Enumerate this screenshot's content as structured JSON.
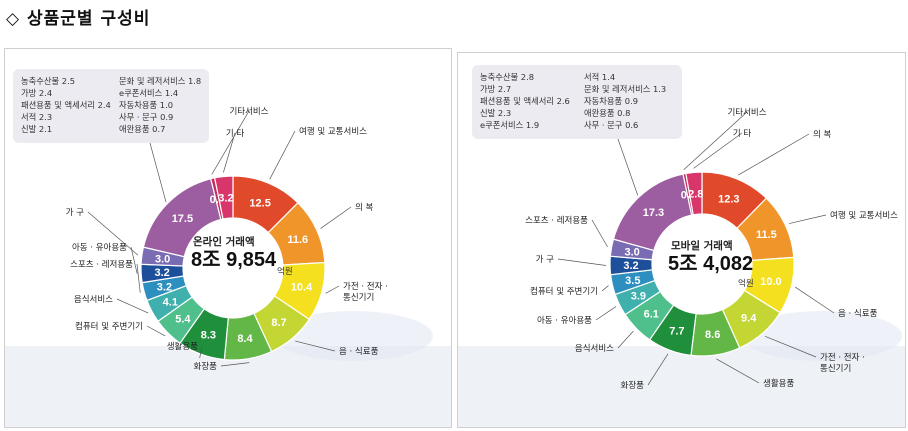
{
  "page_title": "◇ 상품군별 구성비",
  "chart_data": [
    {
      "type": "pie",
      "center_label": "온라인 거래액",
      "center_value": "8조 9,854",
      "center_unit": "억원",
      "segments": [
        {
          "label": "여행 및 교통서비스",
          "value": 12.5,
          "color": "#e0492a"
        },
        {
          "label": "의 복",
          "value": 11.6,
          "color": "#f0952a"
        },
        {
          "label": "가전 · 전자 · 통신기기",
          "value": 10.4,
          "color": "#f4e01f"
        },
        {
          "label": "음 · 식료품",
          "value": 8.7,
          "color": "#c4d634"
        },
        {
          "label": "화장품",
          "value": 8.4,
          "color": "#63b746"
        },
        {
          "label": "생활용품",
          "value": 8.3,
          "color": "#1f8f3c"
        },
        {
          "label": "컴퓨터 및 주변기기",
          "value": 5.4,
          "color": "#4fbf8c"
        },
        {
          "label": "음식서비스",
          "value": 4.1,
          "color": "#3fb0ad"
        },
        {
          "label": "스포츠 · 레저용품",
          "value": 3.2,
          "color": "#2d8fbf"
        },
        {
          "label": "아동 · 유아용품",
          "value": 3.2,
          "color": "#1e4f9a"
        },
        {
          "label": "가 구",
          "value": 3.0,
          "color": "#7a6cb3"
        },
        {
          "label": "",
          "value": 17.5,
          "color": "#9c5ea0"
        },
        {
          "label": "기타서비스",
          "value": 0.7,
          "color": "#c42d5c"
        },
        {
          "label": "기 타",
          "value": 3.2,
          "color": "#d8356a"
        }
      ],
      "others_legend": [
        {
          "label": "농축수산물",
          "value": "2.5"
        },
        {
          "label": "가방",
          "value": "2.4"
        },
        {
          "label": "패션용품 및 액세서리",
          "value": "2.4"
        },
        {
          "label": "서적",
          "value": "2.3"
        },
        {
          "label": "신발",
          "value": "2.1"
        },
        {
          "label": "문화 및 레저서비스",
          "value": "1.8"
        },
        {
          "label": "e쿠폰서비스",
          "value": "1.4"
        },
        {
          "label": "자동차용품",
          "value": "1.0"
        },
        {
          "label": "사무 · 문구",
          "value": "0.9"
        },
        {
          "label": "애완용품",
          "value": "0.7"
        }
      ]
    },
    {
      "type": "pie",
      "center_label": "모바일 거래액",
      "center_value": "5조 4,082",
      "center_unit": "억원",
      "segments": [
        {
          "label": "의 복",
          "value": 12.3,
          "color": "#e0492a"
        },
        {
          "label": "여행 및 교통서비스",
          "value": 11.5,
          "color": "#f0952a"
        },
        {
          "label": "음 · 식료품",
          "value": 10.0,
          "color": "#f4e01f"
        },
        {
          "label": "가전 · 전자 · 통신기기",
          "value": 9.4,
          "color": "#c4d634"
        },
        {
          "label": "생활용품",
          "value": 8.6,
          "color": "#63b746"
        },
        {
          "label": "화장품",
          "value": 7.7,
          "color": "#1f8f3c"
        },
        {
          "label": "음식서비스",
          "value": 6.1,
          "color": "#4fbf8c"
        },
        {
          "label": "아동 · 유아용품",
          "value": 3.9,
          "color": "#3fb0ad"
        },
        {
          "label": "컴퓨터 및 주변기기",
          "value": 3.5,
          "color": "#2d8fbf"
        },
        {
          "label": "가 구",
          "value": 3.2,
          "color": "#1e4f9a"
        },
        {
          "label": "스포츠 · 레저용품",
          "value": 3.0,
          "color": "#7a6cb3"
        },
        {
          "label": "",
          "value": 17.3,
          "color": "#9c5ea0"
        },
        {
          "label": "기타서비스",
          "value": 0.5,
          "color": "#c42d5c"
        },
        {
          "label": "기 타",
          "value": 2.8,
          "color": "#d8356a"
        }
      ],
      "others_legend": [
        {
          "label": "농축수산물",
          "value": "2.8"
        },
        {
          "label": "가방",
          "value": "2.7"
        },
        {
          "label": "패션용품 및 액세서리",
          "value": "2.6"
        },
        {
          "label": "신발",
          "value": "2.3"
        },
        {
          "label": "e쿠폰서비스",
          "value": "1.9"
        },
        {
          "label": "서적",
          "value": "1.4"
        },
        {
          "label": "문화 및 레저서비스",
          "value": "1.3"
        },
        {
          "label": "자동차용품",
          "value": "0.9"
        },
        {
          "label": "애완용품",
          "value": "0.8"
        },
        {
          "label": "사무 · 문구",
          "value": "0.6"
        }
      ]
    }
  ]
}
